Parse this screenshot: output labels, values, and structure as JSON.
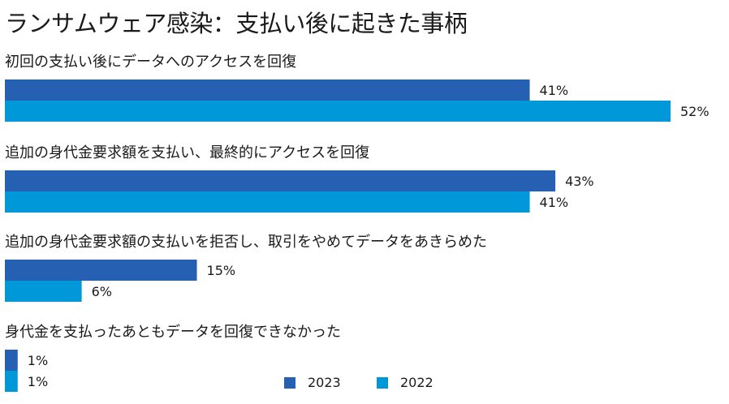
{
  "chart_data": {
    "type": "bar",
    "orientation": "horizontal",
    "title": "ランサムウェア感染：支払い後に起きた事柄",
    "categories": [
      "初回の支払い後にデータへのアクセスを回復",
      "追加の身代金要求額を支払い、最終的にアクセスを回復",
      "追加の身代金要求額の支払いを拒否し、取引をやめてデータをあきらめた",
      "身代金を支払ったあともデータを回復できなかった"
    ],
    "series": [
      {
        "name": "2023",
        "color": "#2660b3",
        "values": [
          41,
          43,
          15,
          1
        ],
        "labels": [
          "41%",
          "43%",
          "15%",
          "1%"
        ]
      },
      {
        "name": "2022",
        "color": "#0098d8",
        "values": [
          52,
          41,
          6,
          1
        ],
        "labels": [
          "52%",
          "41%",
          "6%",
          "1%"
        ]
      }
    ],
    "unit": "%",
    "xlim": [
      0,
      52
    ],
    "grid": false,
    "legend_position": "bottom"
  }
}
